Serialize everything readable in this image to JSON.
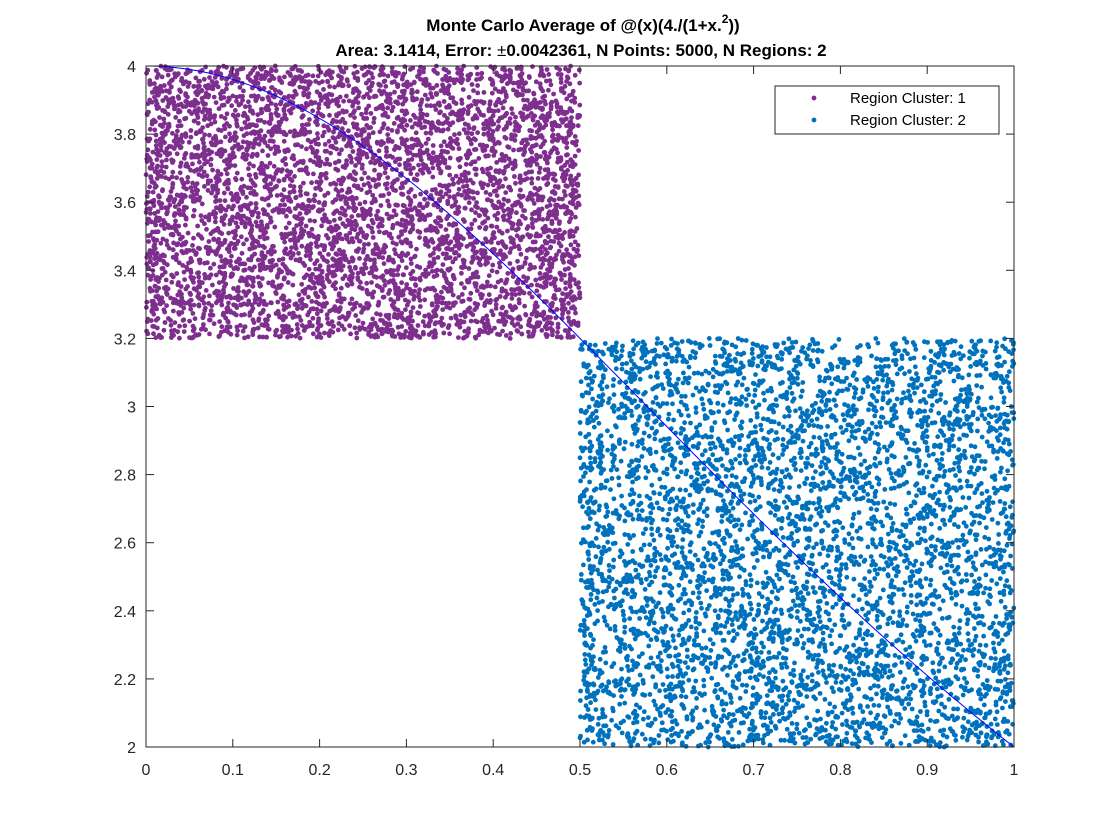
{
  "chart_data": {
    "type": "scatter",
    "title": {
      "prefix": "Monte Carlo Average of @(x)(4./(1+x.",
      "superscript": "2",
      "suffix": "))"
    },
    "subtitle": {
      "prefix": "Area: 3.1414, Error: ",
      "pm": "±",
      "suffix": "0.0042361, N Points: 5000, N Regions: 2"
    },
    "xlabel": "",
    "ylabel": "",
    "xlim": [
      0,
      1
    ],
    "ylim": [
      2,
      4
    ],
    "xticks": [
      "0",
      "0.1",
      "0.2",
      "0.3",
      "0.4",
      "0.5",
      "0.6",
      "0.7",
      "0.8",
      "0.9",
      "1"
    ],
    "yticks": [
      "2",
      "2.2",
      "2.4",
      "2.6",
      "2.8",
      "3",
      "3.2",
      "3.4",
      "3.6",
      "3.8",
      "4"
    ],
    "grid": false,
    "legend_position": "top-right",
    "series": [
      {
        "name": "Region Cluster: 1",
        "color": "#7E2F8E",
        "marker": "dot",
        "n_points": 5000,
        "region": {
          "x": [
            0,
            0.5
          ],
          "y": [
            3.2,
            4.0
          ]
        }
      },
      {
        "name": "Region Cluster: 2",
        "color": "#0072BD",
        "marker": "dot",
        "n_points": 5000,
        "region": {
          "x": [
            0.5,
            1.0
          ],
          "y": [
            2.0,
            3.2
          ]
        }
      }
    ],
    "curve": {
      "function": "4/(1+x^2)",
      "color": "#0000FF",
      "x_range": [
        0,
        1
      ]
    }
  }
}
